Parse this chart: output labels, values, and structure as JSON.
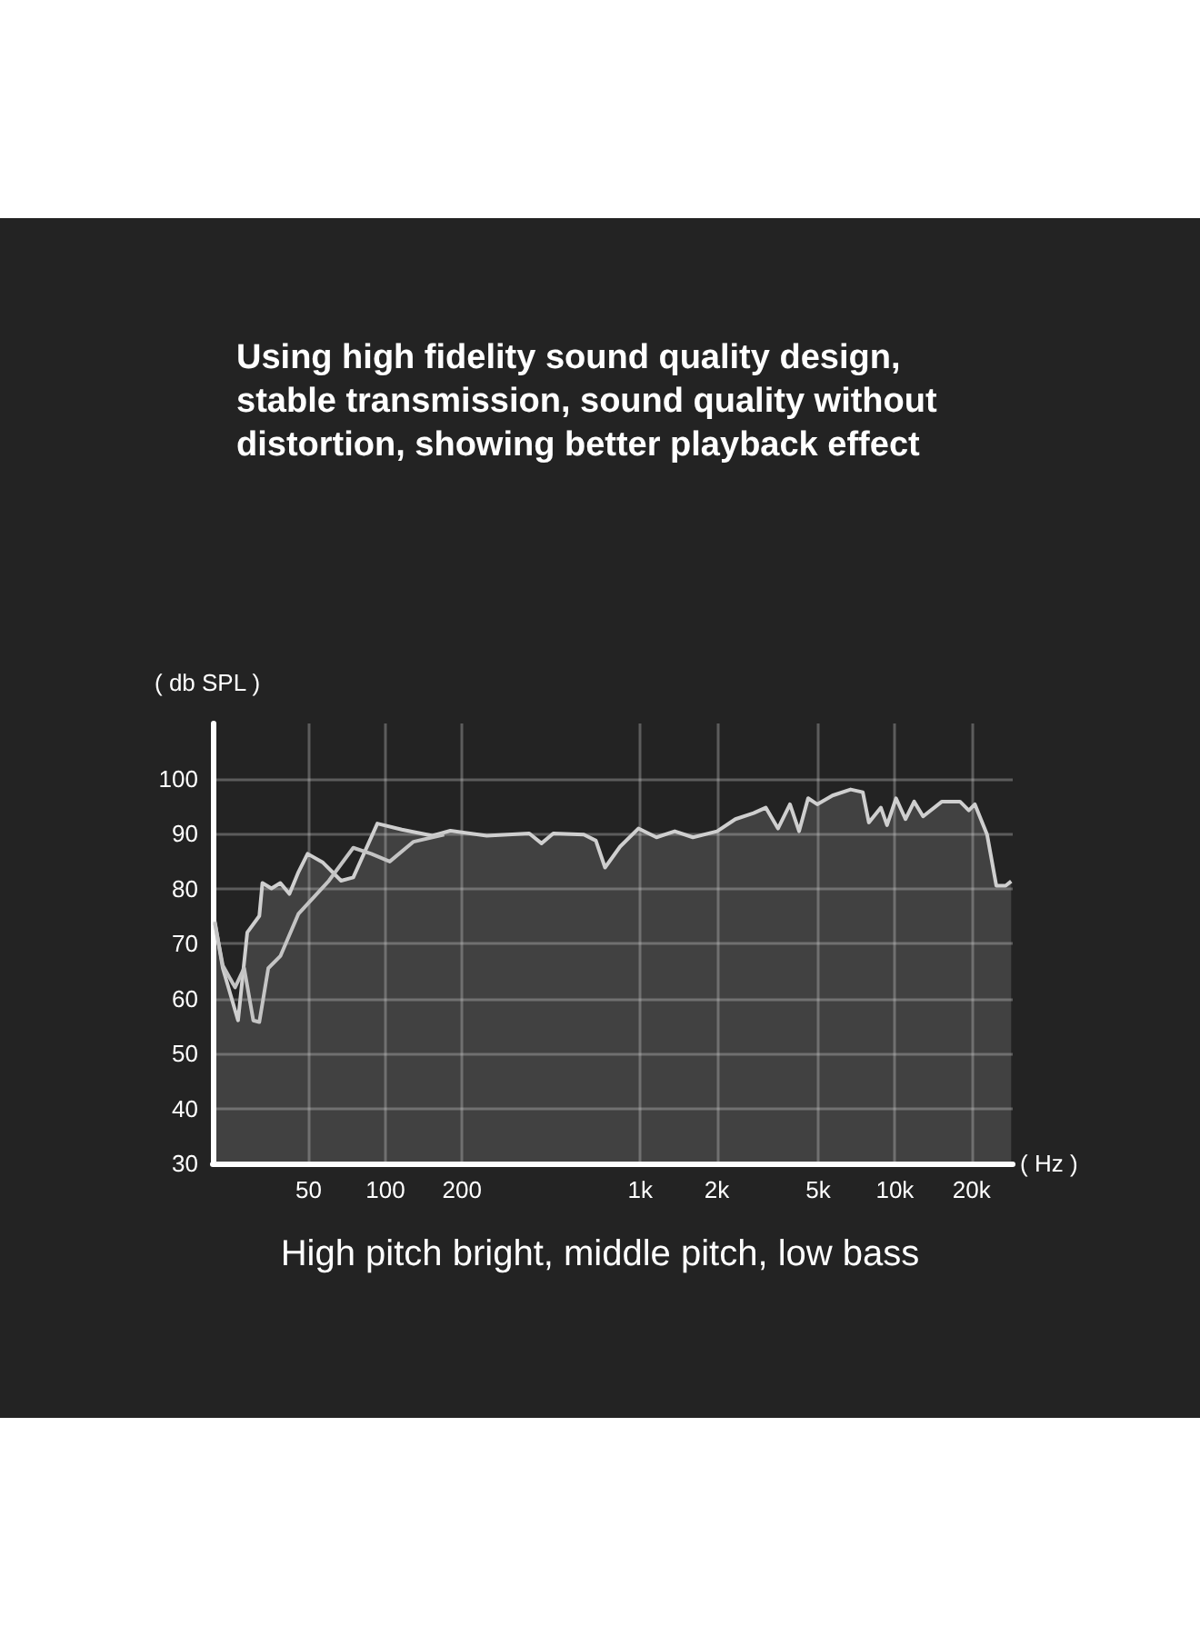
{
  "chart_data": {
    "type": "line",
    "title": "Using high fidelity sound quality design, stable transmission, sound quality without distortion, showing better playback effect",
    "ylabel": "( db SPL )",
    "xlabel": "( Hz )",
    "annotations": [
      "High pitch bright, middle pitch, low bass"
    ],
    "log": "x",
    "grid": true,
    "marker": "none",
    "xlim": [
      21,
      29000
    ],
    "ylim": [
      30,
      110
    ],
    "xticks": [
      50,
      100,
      200,
      {
        "value": 1000,
        "label": "1k"
      },
      {
        "value": 2000,
        "label": "2k"
      },
      {
        "value": 5000,
        "label": "5k"
      },
      {
        "value": 10000,
        "label": "10k"
      },
      {
        "value": 20000,
        "label": "20k"
      }
    ],
    "yticks": [
      30,
      40,
      50,
      60,
      70,
      80,
      90,
      100
    ],
    "series": [
      {
        "type": "area",
        "color": "#cfcfcf",
        "x": [
          21.4,
          23,
          26.4,
          28.7,
          32,
          32.9,
          35.7,
          38.7,
          42,
          45.6,
          49.5,
          56.9,
          67,
          74.8,
          93,
          116,
          153,
          180,
          250,
          367,
          410,
          456,
          601,
          670,
          728,
          834,
          984,
          1159,
          1367,
          1611,
          2005,
          2365,
          2787,
          3112,
          3475,
          3873,
          4206,
          4563,
          4955,
          5689,
          6700,
          7480,
          7900,
          8810,
          9310,
          10100,
          11000,
          11900,
          12900,
          15300,
          18000,
          19500,
          20600,
          23000,
          25000,
          27200,
          28600
        ],
        "values": [
          74,
          65.5,
          56,
          72,
          75,
          81,
          80,
          81,
          79,
          83,
          86.3,
          84.7,
          81.4,
          82,
          91.8,
          90.7,
          89.6,
          90.5,
          89.6,
          90,
          88.2,
          90,
          89.8,
          88.7,
          83.8,
          87.6,
          90.9,
          89.3,
          90.4,
          89.3,
          90.4,
          92.6,
          93.7,
          94.7,
          90.9,
          95.3,
          90.4,
          96.4,
          95.3,
          96.9,
          98,
          97.5,
          92,
          94.7,
          91.5,
          96.4,
          92.6,
          95.8,
          93.1,
          95.8,
          95.8,
          94.2,
          95.3,
          89.8,
          80.5,
          80.5,
          81.3
        ]
      },
      {
        "color": "#c4c4c4",
        "x": [
          21.4,
          23,
          25.7,
          27.9,
          30.3,
          32,
          34.7,
          38.7,
          45.6,
          60,
          74.8,
          88,
          104,
          129,
          170
        ],
        "values": [
          73.7,
          66,
          62,
          65.5,
          56,
          55.7,
          65.5,
          67.7,
          75.4,
          81.4,
          87.4,
          86.3,
          84.9,
          88.5,
          89.8
        ]
      }
    ]
  }
}
